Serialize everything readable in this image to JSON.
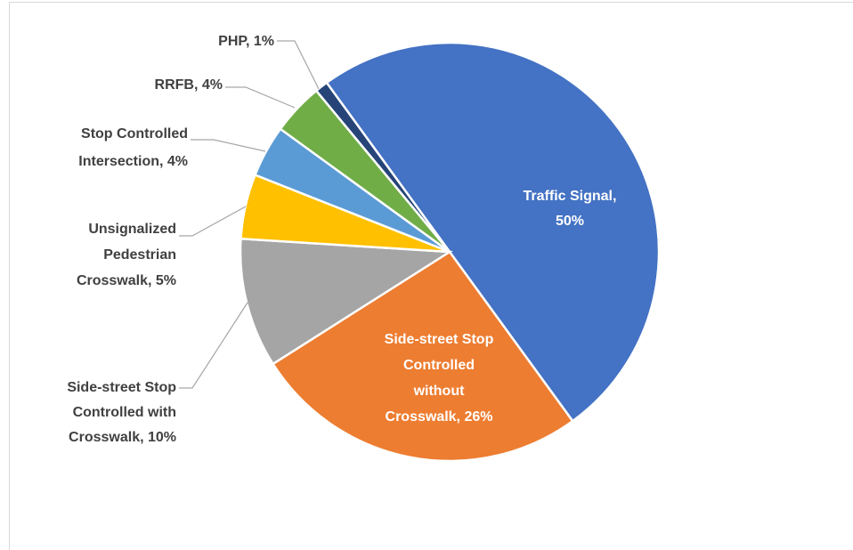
{
  "chart_data": {
    "type": "pie",
    "values": [
      50,
      26,
      10,
      5,
      4,
      4,
      1
    ],
    "value_labels": [
      [
        "Traffic Signal,",
        "50%"
      ],
      [
        "Side-street Stop",
        "Controlled",
        "without",
        "Crosswalk, 26%"
      ],
      [
        "Side-street Stop",
        "Controlled with",
        "Crosswalk, 10%"
      ],
      [
        "Unsignalized",
        "Pedestrian",
        "Crosswalk, 5%"
      ],
      [
        "Stop Controlled",
        "Intersection, 4%"
      ],
      [
        "RRFB, 4%"
      ],
      [
        "PHP, 1%"
      ]
    ],
    "colors": [
      "#4472c4",
      "#ed7d31",
      "#a5a5a5",
      "#ffc000",
      "#5b9bd5",
      "#70ad47",
      "#264478"
    ]
  }
}
